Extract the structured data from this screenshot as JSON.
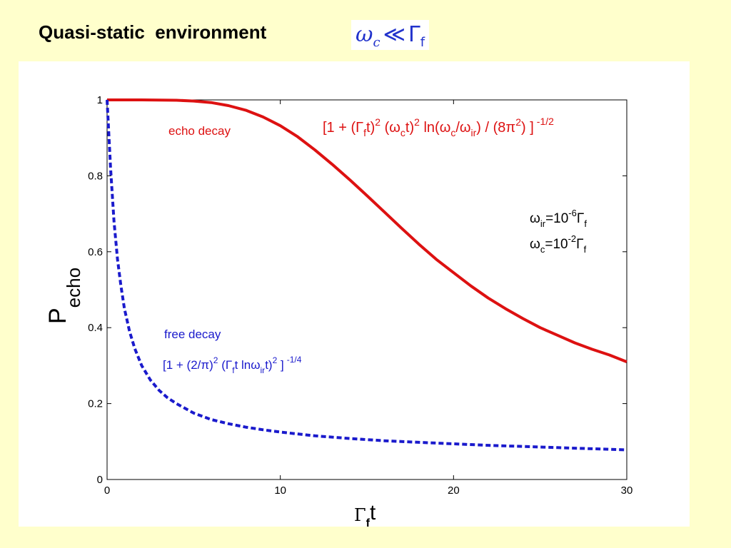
{
  "slide": {
    "title": "Quasi-static  environment",
    "title_formula": {
      "lhs_symbol": "ω",
      "lhs_subscript": "c",
      "relation": "≪",
      "rhs_symbol": "Γ",
      "rhs_subscript": "f"
    }
  },
  "colors": {
    "background": "#ffffcc",
    "panel": "#ffffff",
    "echo": "#dd1111",
    "free": "#1a1acc",
    "formula": "#2233cc"
  },
  "chart_data": {
    "type": "line",
    "xlim": [
      0,
      30
    ],
    "ylim": [
      0,
      1
    ],
    "xticks": [
      0,
      10,
      20,
      30
    ],
    "yticks": [
      0,
      0.2,
      0.4,
      0.6,
      0.8,
      1
    ],
    "xtick_labels": [
      "0",
      "10",
      "20",
      "30"
    ],
    "ytick_labels": [
      "0",
      "0.2",
      "0.4",
      "0.6",
      "0.8",
      "1"
    ],
    "xlabel": {
      "main": "Γ",
      "sub": "f",
      "tail": "t"
    },
    "ylabel": {
      "main": "P",
      "sub": "echo"
    },
    "grid": false,
    "series": [
      {
        "name": "echo decay",
        "style": "solid",
        "x": [
          0,
          2,
          4,
          5,
          6,
          7,
          8,
          9,
          10,
          11,
          12,
          13,
          14,
          15,
          16,
          17,
          18,
          19,
          20,
          21,
          22,
          23,
          24,
          25,
          26,
          27,
          28,
          29,
          30
        ],
        "y": [
          1.0,
          1.0,
          0.999,
          0.997,
          0.993,
          0.985,
          0.973,
          0.955,
          0.932,
          0.903,
          0.868,
          0.83,
          0.79,
          0.748,
          0.705,
          0.662,
          0.62,
          0.58,
          0.545,
          0.51,
          0.478,
          0.45,
          0.424,
          0.4,
          0.38,
          0.36,
          0.343,
          0.328,
          0.31
        ]
      },
      {
        "name": "free decay",
        "style": "dashed",
        "x": [
          0,
          0.2,
          0.4,
          0.6,
          0.8,
          1,
          1.3,
          1.6,
          2,
          2.5,
          3,
          3.5,
          4,
          5,
          6,
          7,
          8,
          9,
          10,
          12,
          14,
          16,
          18,
          20,
          22,
          24,
          26,
          28,
          30
        ],
        "y": [
          1.0,
          0.82,
          0.68,
          0.58,
          0.51,
          0.45,
          0.39,
          0.345,
          0.3,
          0.262,
          0.235,
          0.215,
          0.2,
          0.175,
          0.158,
          0.147,
          0.138,
          0.131,
          0.125,
          0.115,
          0.108,
          0.102,
          0.098,
          0.094,
          0.09,
          0.087,
          0.084,
          0.081,
          0.078
        ]
      }
    ],
    "annotations": {
      "echo_label": "echo decay",
      "echo_formula": {
        "p1": "[1 + (Γ",
        "s1": "f",
        "p2": "t)",
        "e1": "2",
        "p3": " (ω",
        "s2": "c",
        "p4": "t)",
        "e2": "2",
        "p5": " ln(ω",
        "s3": "c",
        "p6": "/ω",
        "s4": "ir",
        "p7": ") / (8π",
        "e3": "2",
        "p8": ") ]",
        "e4": "-1/2"
      },
      "free_label": "free decay",
      "free_formula": {
        "p1": "[1 + (2/π)",
        "e1": "2",
        "p2": " (Γ",
        "s1": "f",
        "p3": "t lnω",
        "s2": "ir",
        "p4": "t)",
        "e2": "2",
        "p5": " ]",
        "e3": "-1/4"
      },
      "params": {
        "line1": {
          "p1": "ω",
          "s1": "ir",
          "p2": "=10",
          "e1": "-6",
          "p3": "Γ",
          "s2": "f"
        },
        "line2": {
          "p1": "ω",
          "s1": "c",
          "p2": "=10",
          "e1": "-2",
          "p3": "Γ",
          "s2": "f"
        }
      }
    }
  }
}
